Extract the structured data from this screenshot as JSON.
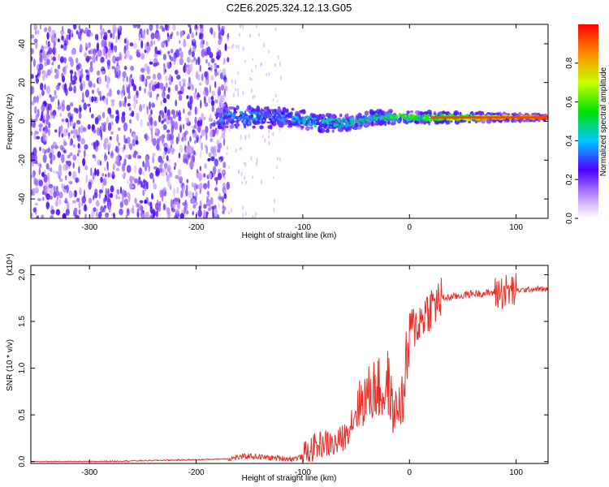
{
  "figure": {
    "title": "C2E6.2025.324.12.13.G05"
  },
  "chart_data": [
    {
      "type": "heatmap",
      "title": "C2E6.2025.324.12.13.G05",
      "xlabel": "Height of straight line (km)",
      "ylabel": "Frequency (Hz)",
      "xlim": [
        -355,
        130
      ],
      "ylim": [
        -50,
        50
      ],
      "xticks": [
        -300,
        -200,
        -100,
        0,
        100
      ],
      "yticks": [
        -40,
        -20,
        0,
        20,
        40
      ],
      "colorbar": {
        "label": "Normalized spectral amplitude",
        "range": [
          0,
          1
        ],
        "ticks": [
          "0.0",
          "0.2",
          "0.4",
          "0.6",
          "0.8"
        ]
      },
      "regions": [
        {
          "name": "broadband noise",
          "x": [
            -355,
            -180
          ],
          "freq": [
            -50,
            50
          ],
          "amplitude": 0.05
        },
        {
          "name": "signal band",
          "x": [
            -180,
            130
          ],
          "center_freq": 2,
          "amplitude_start": 0.3,
          "amplitude_end": 0.95
        }
      ]
    },
    {
      "type": "line",
      "xlabel": "Height of straight line (km)",
      "ylabel": "SNR (10 * v/v)",
      "yscale_label": "(x10⁴)",
      "xlim": [
        -355,
        130
      ],
      "ylim": [
        -0.02,
        2.1
      ],
      "xticks": [
        -300,
        -200,
        -100,
        0,
        100
      ],
      "yticks": [
        "0.0",
        "0.5",
        "1.0",
        "1.5",
        "2.0"
      ],
      "series": [
        {
          "name": "SNR",
          "color": "#e8302a",
          "x": [
            -355,
            -300,
            -250,
            -200,
            -170,
            -150,
            -130,
            -110,
            -100,
            -90,
            -80,
            -70,
            -60,
            -50,
            -45,
            -40,
            -35,
            -30,
            -25,
            -20,
            -15,
            -10,
            -5,
            0,
            5,
            10,
            15,
            20,
            25,
            30,
            40,
            50,
            60,
            70,
            80,
            90,
            100,
            110,
            120,
            130
          ],
          "values": [
            0.0,
            0.0,
            0.01,
            0.02,
            0.03,
            0.06,
            0.04,
            0.03,
            0.05,
            0.15,
            0.2,
            0.18,
            0.28,
            0.55,
            0.65,
            0.7,
            0.75,
            0.8,
            0.7,
            0.85,
            0.5,
            0.6,
            0.7,
            1.4,
            1.45,
            1.5,
            1.6,
            1.65,
            1.7,
            1.75,
            1.76,
            1.78,
            1.8,
            1.8,
            1.81,
            1.82,
            1.83,
            1.84,
            1.85,
            1.84
          ]
        }
      ]
    }
  ]
}
